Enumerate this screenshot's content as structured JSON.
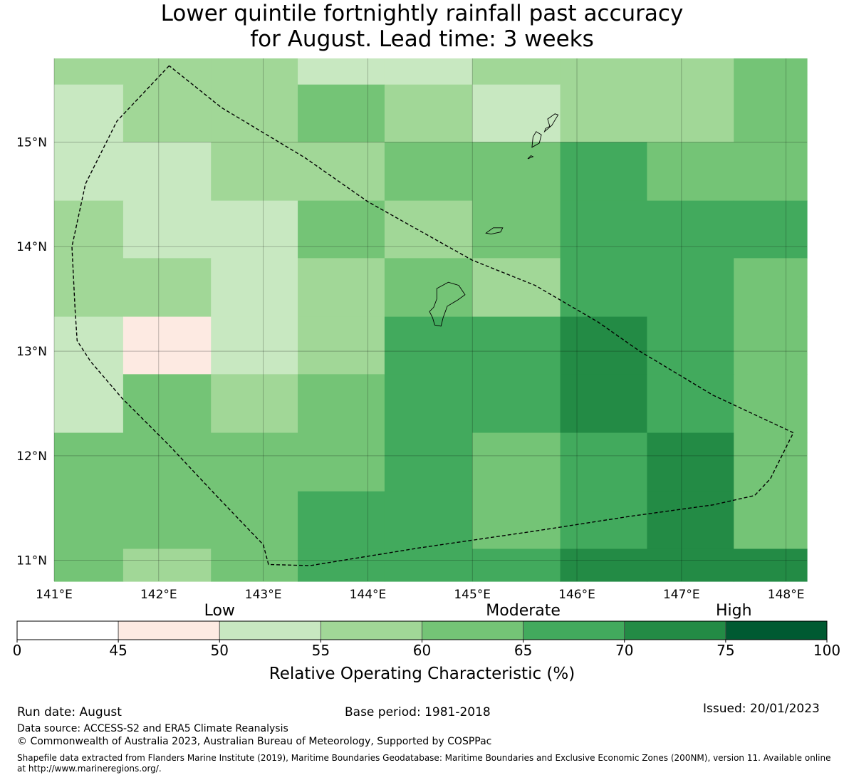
{
  "title": {
    "line1": "Lower quintile fortnightly rainfall past accuracy",
    "line2": "for August. Lead time: 3 weeks"
  },
  "map": {
    "lon_range": [
      141.0,
      148.2
    ],
    "lat_range": [
      10.8,
      15.8
    ],
    "lon_ticks": [
      {
        "value": 141,
        "label": "141°E"
      },
      {
        "value": 142,
        "label": "142°E"
      },
      {
        "value": 143,
        "label": "143°E"
      },
      {
        "value": 144,
        "label": "144°E"
      },
      {
        "value": 145,
        "label": "145°E"
      },
      {
        "value": 146,
        "label": "146°E"
      },
      {
        "value": 147,
        "label": "147°E"
      },
      {
        "value": 148,
        "label": "148°E"
      }
    ],
    "lat_ticks": [
      {
        "value": 15,
        "label": "15°N"
      },
      {
        "value": 14,
        "label": "14°N"
      },
      {
        "value": 13,
        "label": "13°N"
      },
      {
        "value": 12,
        "label": "12°N"
      },
      {
        "value": 11,
        "label": "11°N"
      }
    ],
    "grid_col_edges_lon": [
      141.0,
      141.66,
      142.5,
      143.33,
      144.16,
      145.0,
      145.84,
      146.67,
      147.5,
      148.2
    ],
    "grid_row_edges_lat": [
      15.8,
      15.55,
      15.0,
      14.44,
      13.89,
      13.33,
      12.78,
      12.22,
      11.66,
      11.11,
      10.8
    ],
    "grid_cell_bins": [
      [
        3,
        3,
        3,
        2,
        2,
        3,
        3,
        3,
        4
      ],
      [
        2,
        3,
        3,
        4,
        3,
        2,
        3,
        3,
        4
      ],
      [
        2,
        2,
        3,
        3,
        4,
        4,
        5,
        4,
        4
      ],
      [
        3,
        2,
        2,
        4,
        3,
        4,
        5,
        5,
        5
      ],
      [
        3,
        3,
        2,
        3,
        4,
        3,
        5,
        5,
        4
      ],
      [
        2,
        1,
        2,
        3,
        5,
        5,
        6,
        5,
        4
      ],
      [
        2,
        4,
        3,
        4,
        5,
        5,
        6,
        5,
        4
      ],
      [
        4,
        4,
        4,
        4,
        5,
        4,
        5,
        6,
        4
      ],
      [
        4,
        4,
        4,
        5,
        5,
        4,
        5,
        6,
        4
      ],
      [
        4,
        3,
        4,
        5,
        5,
        5,
        6,
        6,
        6
      ]
    ],
    "region_boundary": [
      [
        142.1,
        15.73
      ],
      [
        141.6,
        15.2
      ],
      [
        141.3,
        14.6
      ],
      [
        141.17,
        14.0
      ],
      [
        141.2,
        13.4
      ],
      [
        141.22,
        13.1
      ],
      [
        141.35,
        12.9
      ],
      [
        141.65,
        12.55
      ],
      [
        142.1,
        12.1
      ],
      [
        142.55,
        11.62
      ],
      [
        143.0,
        11.15
      ],
      [
        143.05,
        10.96
      ],
      [
        143.45,
        10.95
      ],
      [
        144.5,
        11.12
      ],
      [
        145.6,
        11.28
      ],
      [
        146.5,
        11.42
      ],
      [
        147.3,
        11.53
      ],
      [
        147.7,
        11.62
      ],
      [
        147.85,
        11.78
      ],
      [
        148.07,
        12.22
      ],
      [
        147.3,
        12.58
      ],
      [
        146.6,
        13.0
      ],
      [
        146.2,
        13.28
      ],
      [
        145.6,
        13.63
      ],
      [
        145.0,
        13.87
      ],
      [
        144.0,
        14.43
      ],
      [
        143.4,
        14.85
      ],
      [
        142.6,
        15.33
      ],
      [
        142.1,
        15.73
      ]
    ],
    "islands": [
      {
        "name": "Guam",
        "points": [
          [
            144.66,
            13.6
          ],
          [
            144.77,
            13.66
          ],
          [
            144.87,
            13.63
          ],
          [
            144.93,
            13.54
          ],
          [
            144.86,
            13.49
          ],
          [
            144.76,
            13.43
          ],
          [
            144.72,
            13.32
          ],
          [
            144.7,
            13.24
          ],
          [
            144.64,
            13.25
          ],
          [
            144.62,
            13.32
          ],
          [
            144.59,
            13.38
          ],
          [
            144.63,
            13.42
          ],
          [
            144.66,
            13.5
          ]
        ]
      },
      {
        "name": "Rota",
        "points": [
          [
            145.13,
            14.13
          ],
          [
            145.2,
            14.18
          ],
          [
            145.29,
            14.18
          ],
          [
            145.27,
            14.14
          ],
          [
            145.18,
            14.12
          ]
        ]
      },
      {
        "name": "Tinian",
        "points": [
          [
            145.57,
            14.95
          ],
          [
            145.64,
            14.99
          ],
          [
            145.66,
            15.07
          ],
          [
            145.61,
            15.1
          ],
          [
            145.58,
            15.05
          ]
        ]
      },
      {
        "name": "Saipan",
        "points": [
          [
            145.69,
            15.1
          ],
          [
            145.76,
            15.16
          ],
          [
            145.82,
            15.26
          ],
          [
            145.79,
            15.27
          ],
          [
            145.72,
            15.22
          ],
          [
            145.74,
            15.15
          ],
          [
            145.7,
            15.13
          ]
        ]
      },
      {
        "name": "Aguijan",
        "points": [
          [
            145.53,
            14.84
          ],
          [
            145.58,
            14.86
          ],
          [
            145.56,
            14.87
          ]
        ]
      }
    ]
  },
  "colorbar": {
    "boundaries": [
      0,
      45,
      50,
      55,
      60,
      65,
      70,
      75,
      100
    ],
    "tick_labels": [
      "0",
      "45",
      "50",
      "55",
      "60",
      "65",
      "70",
      "75",
      "100"
    ],
    "colors": [
      "#ffffff",
      "#fdeae2",
      "#c8e8c1",
      "#a1d797",
      "#74c476",
      "#42aa5d",
      "#238b45",
      "#005a32"
    ],
    "category_labels": [
      {
        "label": "Low",
        "at": 50
      },
      {
        "label": "Moderate",
        "at": 65
      },
      {
        "label": "High",
        "at": 77
      }
    ],
    "axis_label": "Relative Operating Characteristic (%)"
  },
  "footer": {
    "run_date": "Run date: August",
    "base_period": "Base period: 1981-2018",
    "issued": "Issued: 20/01/2023",
    "data_source": "Data source: ACCESS-S2 and ERA5 Climate Reanalysis",
    "copyright": "© Commonwealth of Australia 2023, Australian Bureau of Meteorology, Supported by COSPPac",
    "shapefile_line1": "Shapefile data extracted from Flanders Marine Institute (2019), Maritime Boundaries Geodatabase: Maritime Boundaries and Exclusive Economic Zones (200NM), version 11. Available online",
    "shapefile_line2": "at http://www.marineregions.org/."
  }
}
